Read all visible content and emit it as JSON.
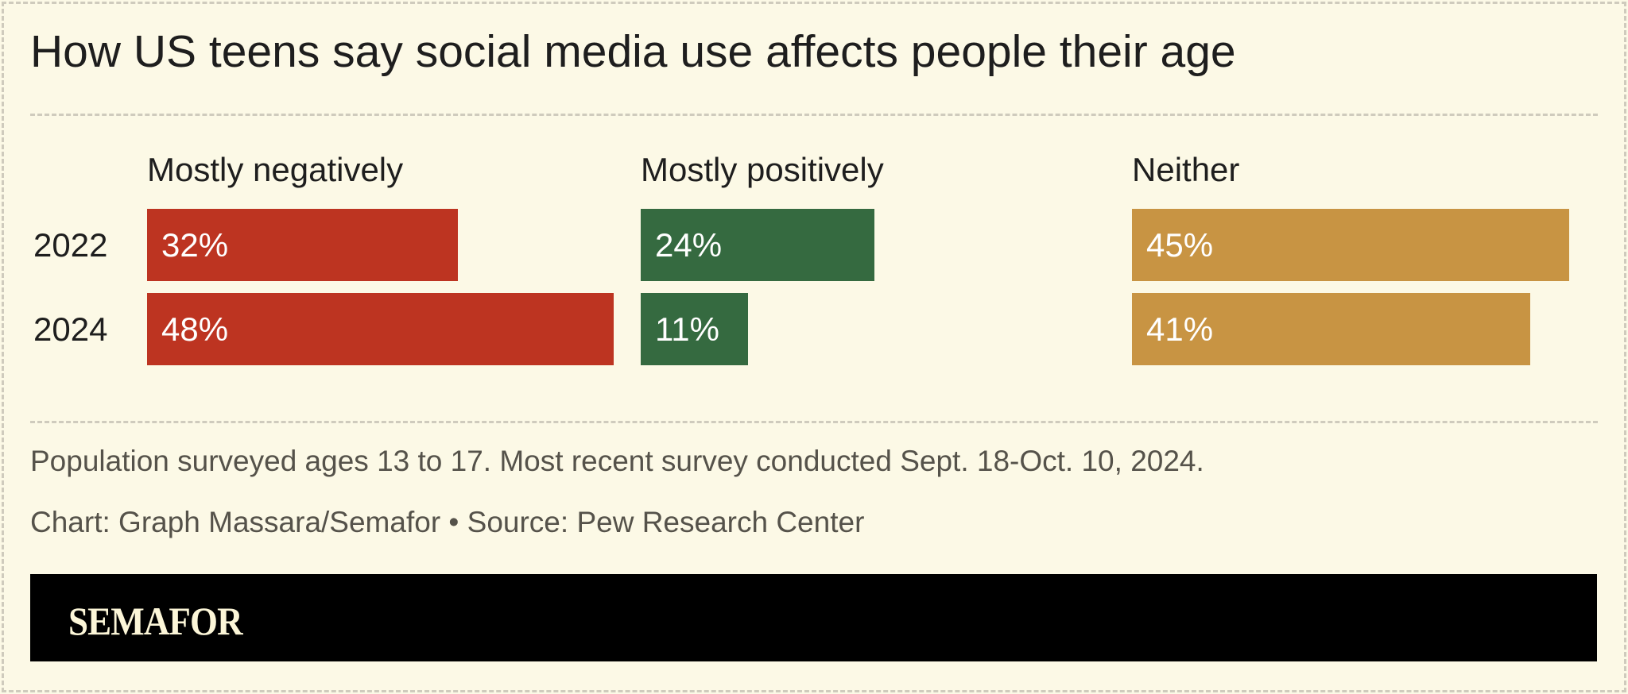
{
  "chart_data": {
    "type": "bar",
    "title": "How US teens say social media use affects people their age",
    "categories": [
      "2022",
      "2024"
    ],
    "series": [
      {
        "name": "Mostly negatively",
        "values": [
          32,
          48
        ],
        "color": "#bd3421"
      },
      {
        "name": "Mostly positively",
        "values": [
          24,
          11
        ],
        "color": "#356a40"
      },
      {
        "name": "Neither",
        "values": [
          45,
          41
        ],
        "color": "#c89443"
      }
    ],
    "value_format": "percent",
    "grid": false
  },
  "notes": {
    "population": "Population surveyed ages 13 to 17. Most recent survey conducted Sept. 18-Oct. 10, 2024.",
    "credit": "Chart: Graph Massara/Semafor • Source: Pew Research Center"
  },
  "brand": {
    "logo": "SEMAFOR"
  }
}
